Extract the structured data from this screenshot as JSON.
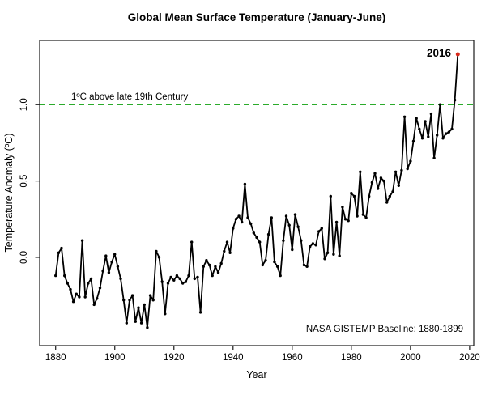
{
  "page": {
    "background": "#ffffff"
  },
  "chart_data": {
    "type": "line",
    "title": "Global Mean Surface Temperature (January-June)",
    "xlabel": "Year",
    "ylabel": "Temperature Anomaly (ºC)",
    "x_ticks": [
      1880,
      1900,
      1920,
      1940,
      1960,
      1980,
      2000,
      2020
    ],
    "y_ticks": [
      "0.0",
      "0.5",
      "1.0"
    ],
    "y_tick_values": [
      0.0,
      0.5,
      1.0
    ],
    "xlim": [
      1874.6,
      2021.4
    ],
    "ylim": [
      -0.578,
      1.42
    ],
    "grid": false,
    "legend": "none",
    "line_color": "#000000",
    "threshold_line": {
      "value": 1.0,
      "label": "1ºC above late 19th Century",
      "color": "#2bab2b",
      "style": "dashed"
    },
    "annotation_note": "NASA GISTEMP Baseline: 1880-1899",
    "highlight": {
      "year": 2016,
      "value": 1.33,
      "label": "2016",
      "color": "#d92a1c"
    },
    "series": [
      {
        "name": "January-June mean temperature anomaly (ºC)",
        "years": [
          1880,
          1881,
          1882,
          1883,
          1884,
          1885,
          1886,
          1887,
          1888,
          1889,
          1890,
          1891,
          1892,
          1893,
          1894,
          1895,
          1896,
          1897,
          1898,
          1899,
          1900,
          1901,
          1902,
          1903,
          1904,
          1905,
          1906,
          1907,
          1908,
          1909,
          1910,
          1911,
          1912,
          1913,
          1914,
          1915,
          1916,
          1917,
          1918,
          1919,
          1920,
          1921,
          1922,
          1923,
          1924,
          1925,
          1926,
          1927,
          1928,
          1929,
          1930,
          1931,
          1932,
          1933,
          1934,
          1935,
          1936,
          1937,
          1938,
          1939,
          1940,
          1941,
          1942,
          1943,
          1944,
          1945,
          1946,
          1947,
          1948,
          1949,
          1950,
          1951,
          1952,
          1953,
          1954,
          1955,
          1956,
          1957,
          1958,
          1959,
          1960,
          1961,
          1962,
          1963,
          1964,
          1965,
          1966,
          1967,
          1968,
          1969,
          1970,
          1971,
          1972,
          1973,
          1974,
          1975,
          1976,
          1977,
          1978,
          1979,
          1980,
          1981,
          1982,
          1983,
          1984,
          1985,
          1986,
          1987,
          1988,
          1989,
          1990,
          1991,
          1992,
          1993,
          1994,
          1995,
          1996,
          1997,
          1998,
          1999,
          2000,
          2001,
          2002,
          2003,
          2004,
          2005,
          2006,
          2007,
          2008,
          2009,
          2010,
          2011,
          2012,
          2013,
          2014,
          2015,
          2016
        ],
        "values": [
          -0.12,
          0.03,
          0.06,
          -0.12,
          -0.17,
          -0.21,
          -0.29,
          -0.24,
          -0.26,
          0.11,
          -0.26,
          -0.17,
          -0.14,
          -0.31,
          -0.27,
          -0.2,
          -0.09,
          0.01,
          -0.1,
          -0.03,
          0.02,
          -0.06,
          -0.14,
          -0.28,
          -0.43,
          -0.28,
          -0.25,
          -0.42,
          -0.33,
          -0.43,
          -0.31,
          -0.46,
          -0.25,
          -0.28,
          0.04,
          0.0,
          -0.16,
          -0.37,
          -0.17,
          -0.13,
          -0.15,
          -0.12,
          -0.14,
          -0.17,
          -0.16,
          -0.12,
          0.1,
          -0.14,
          -0.13,
          -0.36,
          -0.06,
          -0.02,
          -0.05,
          -0.12,
          -0.06,
          -0.1,
          -0.04,
          0.04,
          0.1,
          0.03,
          0.19,
          0.25,
          0.27,
          0.23,
          0.48,
          0.26,
          0.22,
          0.16,
          0.13,
          0.1,
          -0.05,
          -0.02,
          0.15,
          0.26,
          -0.03,
          -0.06,
          -0.12,
          0.11,
          0.27,
          0.21,
          0.05,
          0.28,
          0.2,
          0.11,
          -0.05,
          -0.06,
          0.07,
          0.09,
          0.08,
          0.17,
          0.19,
          -0.01,
          0.03,
          0.4,
          0.02,
          0.23,
          0.01,
          0.33,
          0.25,
          0.24,
          0.42,
          0.4,
          0.27,
          0.56,
          0.28,
          0.26,
          0.4,
          0.49,
          0.55,
          0.45,
          0.52,
          0.5,
          0.36,
          0.4,
          0.43,
          0.56,
          0.47,
          0.57,
          0.92,
          0.58,
          0.63,
          0.76,
          0.91,
          0.84,
          0.78,
          0.89,
          0.79,
          0.94,
          0.65,
          0.8,
          1.0,
          0.78,
          0.81,
          0.82,
          0.84,
          1.03,
          1.33
        ]
      }
    ]
  }
}
